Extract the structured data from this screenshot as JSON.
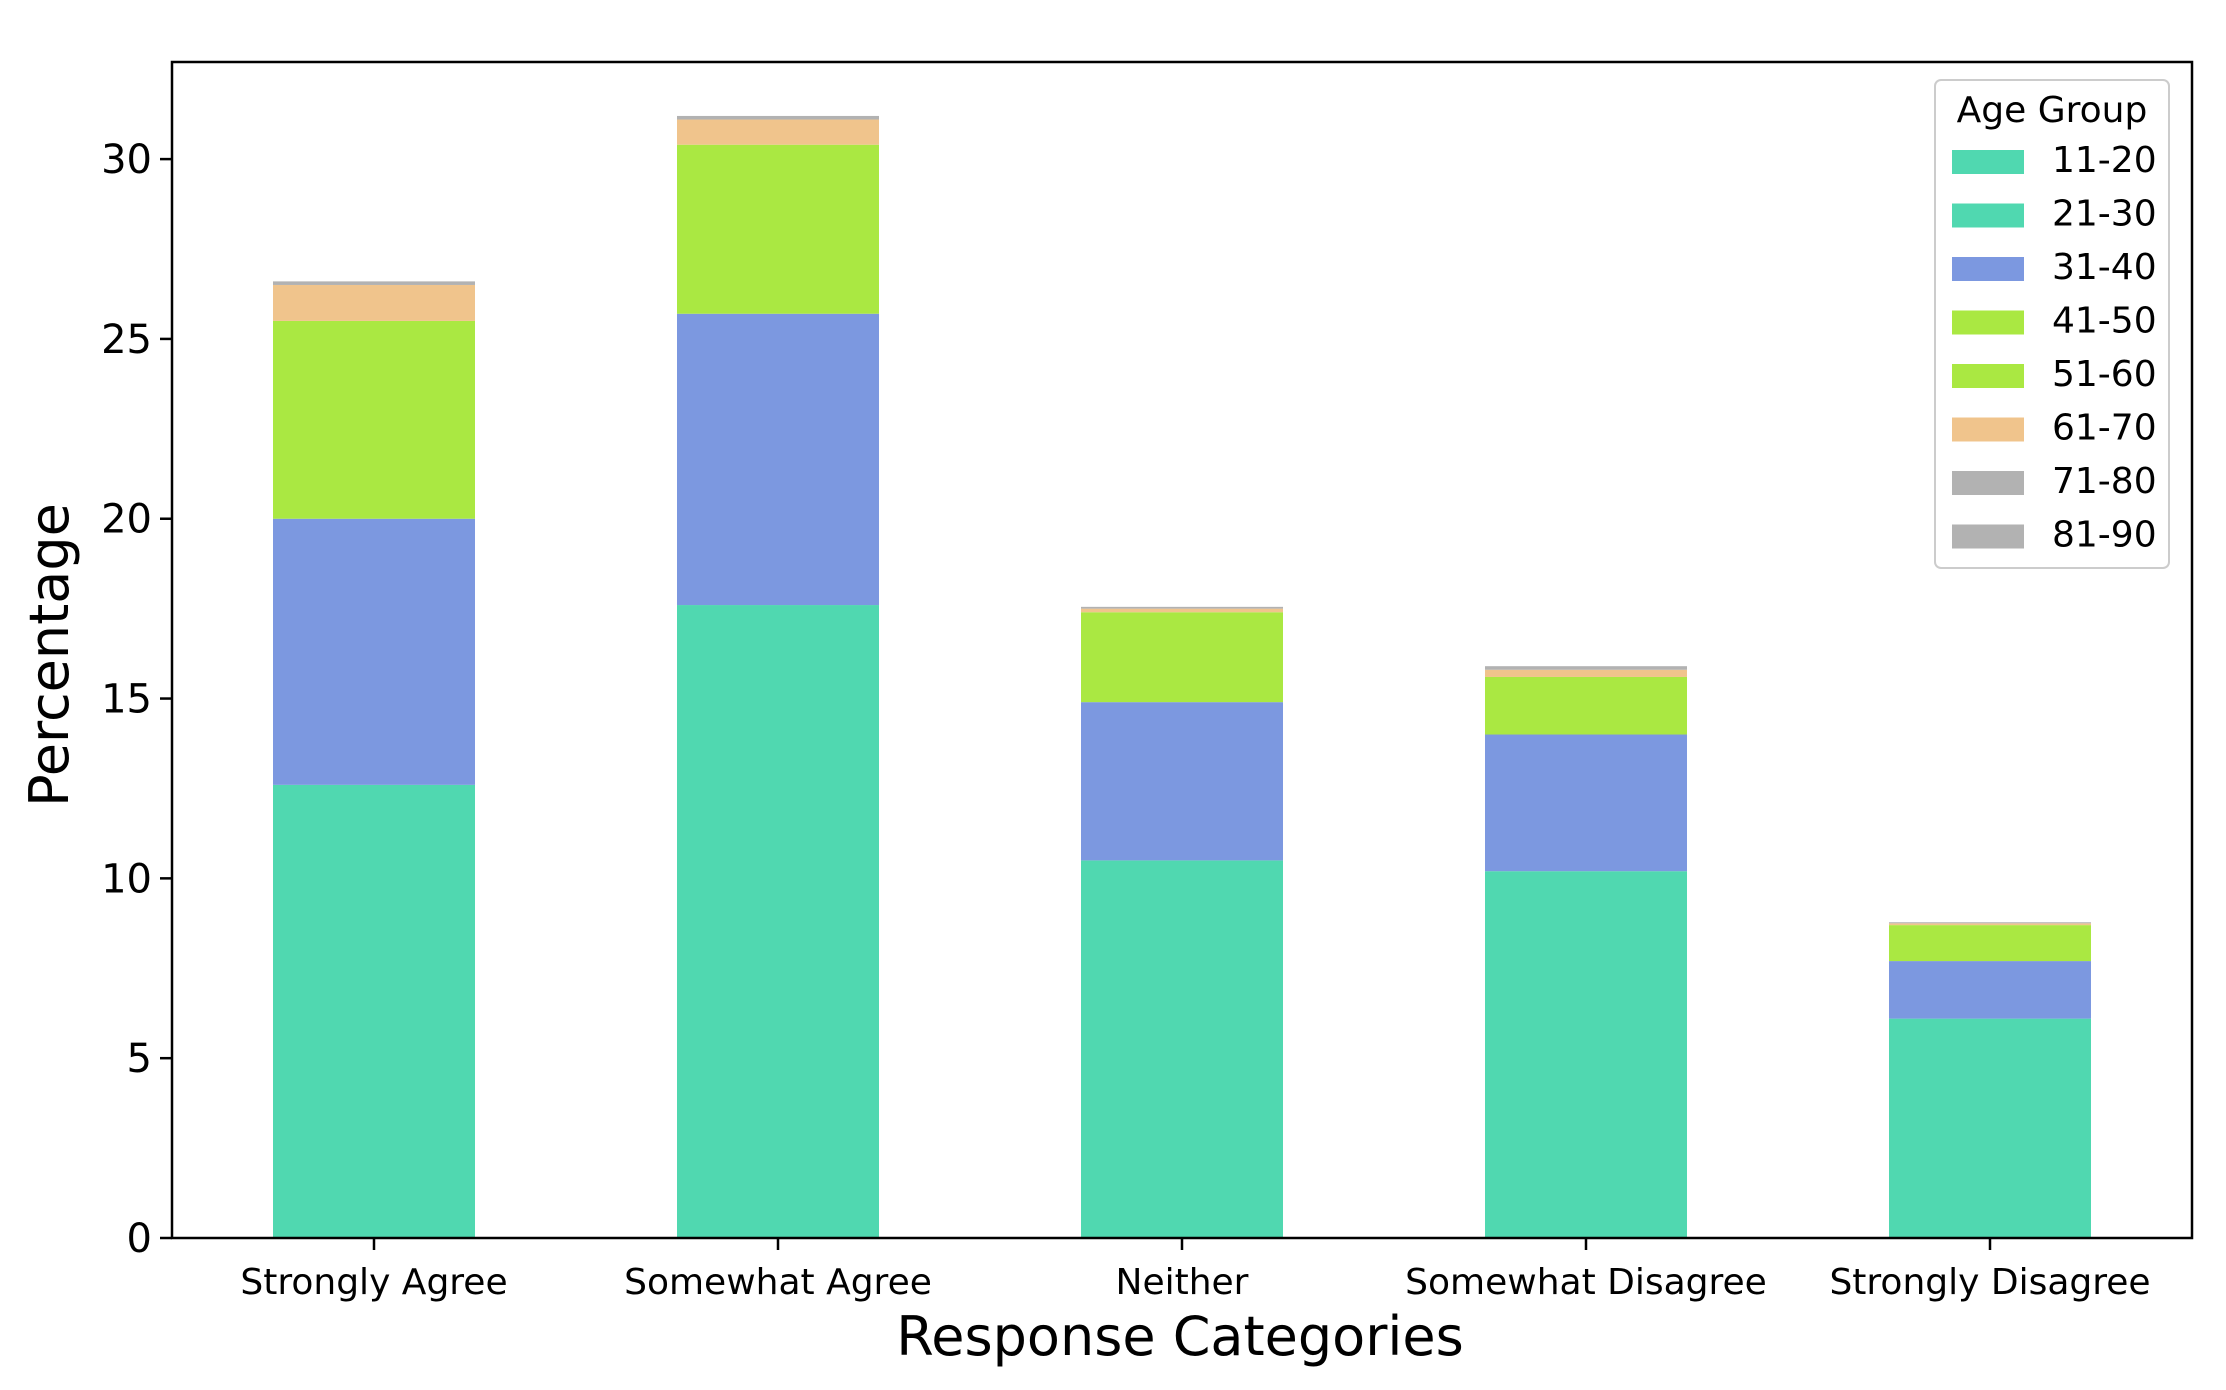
{
  "chart_data": {
    "type": "bar",
    "stacked": true,
    "title": "",
    "xlabel": "Response Categories",
    "ylabel": "Percentage",
    "ylim": [
      0,
      32.7
    ],
    "yticks": [
      0,
      5,
      10,
      15,
      20,
      25,
      30
    ],
    "grid": false,
    "legend_title": "Age Group",
    "legend_position": "top-right",
    "categories": [
      "Strongly Agree",
      "Somewhat Agree",
      "Neither",
      "Somewhat Disagree",
      "Strongly Disagree"
    ],
    "series": [
      {
        "name": "11-20",
        "color": "#50d8b0",
        "values": [
          0,
          0,
          0,
          0,
          0
        ]
      },
      {
        "name": "21-30",
        "color": "#50d8b0",
        "values": [
          12.6,
          17.6,
          10.5,
          10.2,
          6.1
        ]
      },
      {
        "name": "31-40",
        "color": "#7c98e0",
        "values": [
          7.4,
          8.1,
          4.4,
          3.8,
          1.6
        ]
      },
      {
        "name": "41-50",
        "color": "#aae842",
        "values": [
          0,
          0,
          0,
          0,
          0
        ]
      },
      {
        "name": "51-60",
        "color": "#aae842",
        "values": [
          5.5,
          4.7,
          2.5,
          1.6,
          1.0
        ]
      },
      {
        "name": "61-70",
        "color": "#f0c48c",
        "values": [
          1.0,
          0.7,
          0.1,
          0.2,
          0.05
        ]
      },
      {
        "name": "71-80",
        "color": "#b2b2b2",
        "values": [
          0.1,
          0.1,
          0.05,
          0.1,
          0.03
        ]
      },
      {
        "name": "81-90",
        "color": "#b2b2b2",
        "values": [
          0,
          0,
          0,
          0,
          0
        ]
      }
    ]
  }
}
